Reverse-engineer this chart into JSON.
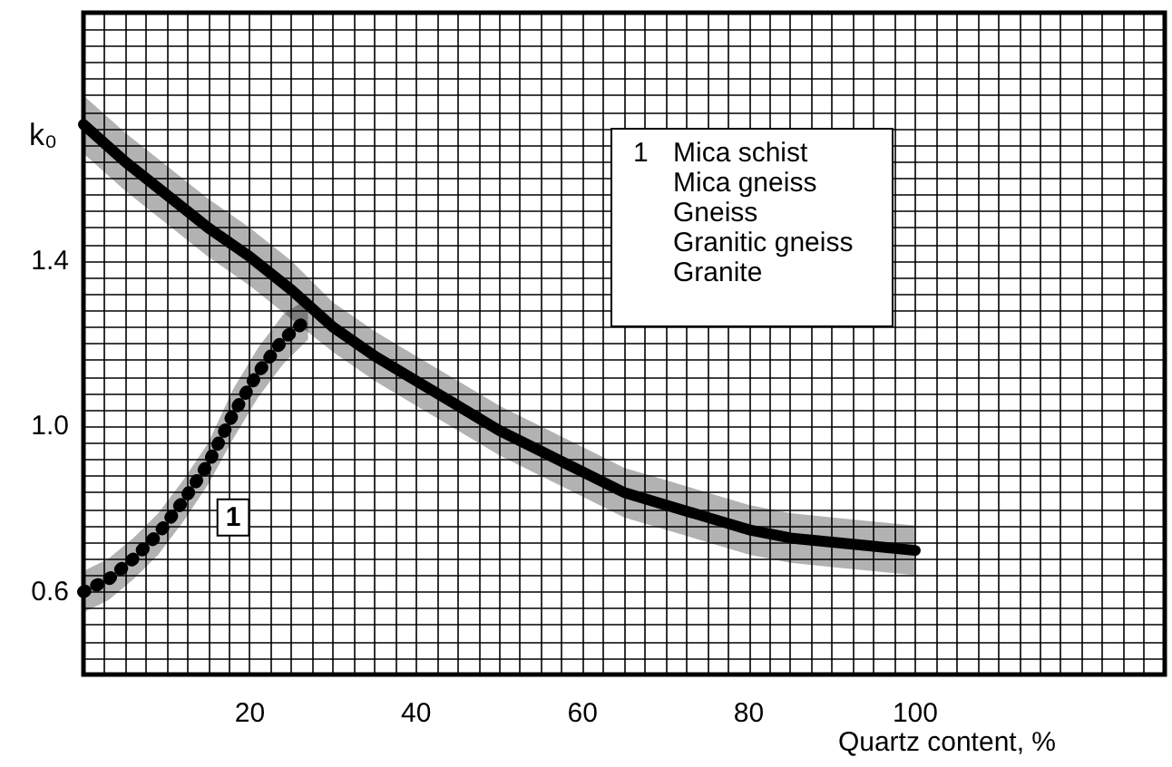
{
  "chart_data": {
    "type": "line",
    "xlabel": "Quartz content, %",
    "ylabel": "k₀",
    "xlim": [
      0,
      130
    ],
    "ylim": [
      0.4,
      2.0
    ],
    "xticks": [
      {
        "value": 0,
        "label": null
      },
      {
        "value": 2.5,
        "label": null
      },
      {
        "value": 5,
        "label": null
      },
      {
        "value": 7.5,
        "label": null
      },
      {
        "value": 10,
        "label": null
      },
      {
        "value": 12.5,
        "label": null
      },
      {
        "value": 15,
        "label": null
      },
      {
        "value": 17.5,
        "label": null
      },
      20,
      {
        "value": 22.5,
        "label": null
      },
      {
        "value": 25,
        "label": null
      },
      {
        "value": 27.5,
        "label": null
      },
      {
        "value": 30,
        "label": null
      },
      {
        "value": 32.5,
        "label": null
      },
      {
        "value": 35,
        "label": null
      },
      {
        "value": 37.5,
        "label": null
      },
      40,
      {
        "value": 42.5,
        "label": null
      },
      {
        "value": 45,
        "label": null
      },
      {
        "value": 47.5,
        "label": null
      },
      {
        "value": 50,
        "label": null
      },
      {
        "value": 52.5,
        "label": null
      },
      {
        "value": 55,
        "label": null
      },
      {
        "value": 57.5,
        "label": null
      },
      60,
      {
        "value": 62.5,
        "label": null
      },
      {
        "value": 65,
        "label": null
      },
      {
        "value": 67.5,
        "label": null
      },
      {
        "value": 70,
        "label": null
      },
      {
        "value": 72.5,
        "label": null
      },
      {
        "value": 75,
        "label": null
      },
      {
        "value": 77.5,
        "label": null
      },
      80,
      {
        "value": 82.5,
        "label": null
      },
      {
        "value": 85,
        "label": null
      },
      {
        "value": 87.5,
        "label": null
      },
      {
        "value": 90,
        "label": null
      },
      {
        "value": 92.5,
        "label": null
      },
      {
        "value": 95,
        "label": null
      },
      {
        "value": 97.5,
        "label": null
      },
      100,
      {
        "value": 102.5,
        "label": null
      },
      {
        "value": 105,
        "label": null
      },
      {
        "value": 107.5,
        "label": null
      },
      {
        "value": 110,
        "label": null
      },
      {
        "value": 112.5,
        "label": null
      },
      {
        "value": 115,
        "label": null
      },
      {
        "value": 117.5,
        "label": null
      },
      {
        "value": 120,
        "label": null
      },
      {
        "value": 122.5,
        "label": null
      },
      {
        "value": 125,
        "label": null
      },
      {
        "value": 127.5,
        "label": null
      },
      {
        "value": 130,
        "label": null
      }
    ],
    "yticks": [
      {
        "value": 0.4,
        "label": null
      },
      {
        "value": 0.44,
        "label": null
      },
      {
        "value": 0.48,
        "label": null
      },
      {
        "value": 0.52,
        "label": null
      },
      {
        "value": 0.56,
        "label": null
      },
      0.6,
      {
        "value": 0.64,
        "label": null
      },
      {
        "value": 0.68,
        "label": null
      },
      {
        "value": 0.72,
        "label": null
      },
      {
        "value": 0.76,
        "label": null
      },
      {
        "value": 0.8,
        "label": null
      },
      {
        "value": 0.84,
        "label": null
      },
      {
        "value": 0.88,
        "label": null
      },
      {
        "value": 0.92,
        "label": null
      },
      {
        "value": 0.96,
        "label": null
      },
      {
        "value": 1.0,
        "label": "1.0"
      },
      {
        "value": 1.04,
        "label": null
      },
      {
        "value": 1.08,
        "label": null
      },
      {
        "value": 1.12,
        "label": null
      },
      {
        "value": 1.16,
        "label": null
      },
      {
        "value": 1.2,
        "label": null
      },
      {
        "value": 1.24,
        "label": null
      },
      {
        "value": 1.28,
        "label": null
      },
      {
        "value": 1.32,
        "label": null
      },
      {
        "value": 1.36,
        "label": null
      },
      1.4,
      {
        "value": 1.44,
        "label": null
      },
      {
        "value": 1.48,
        "label": null
      },
      {
        "value": 1.52,
        "label": null
      },
      {
        "value": 1.56,
        "label": null
      },
      {
        "value": 1.6,
        "label": null
      },
      {
        "value": 1.64,
        "label": null
      },
      {
        "value": 1.68,
        "label": null
      },
      {
        "value": 1.72,
        "label": null
      },
      {
        "value": 1.76,
        "label": null
      },
      {
        "value": 1.8,
        "label": null
      },
      {
        "value": 1.84,
        "label": null
      },
      {
        "value": 1.88,
        "label": null
      },
      {
        "value": 1.92,
        "label": null
      },
      {
        "value": 1.96,
        "label": null
      },
      {
        "value": 2.0,
        "label": null
      }
    ],
    "grid": true,
    "series": [
      {
        "color": "#000000",
        "line_style": "solid",
        "x": [
          0,
          5,
          10,
          15,
          20,
          25,
          30,
          35,
          40,
          45,
          50,
          55,
          60,
          65,
          70,
          75,
          80,
          85,
          90,
          95,
          100
        ],
        "values": [
          1.73,
          1.64,
          1.56,
          1.48,
          1.41,
          1.33,
          1.24,
          1.17,
          1.11,
          1.05,
          0.99,
          0.94,
          0.89,
          0.84,
          0.81,
          0.78,
          0.75,
          0.73,
          0.72,
          0.71,
          0.7
        ],
        "lower": [
          1.66,
          1.57,
          1.49,
          1.41,
          1.34,
          1.26,
          1.18,
          1.11,
          1.05,
          0.99,
          0.93,
          0.88,
          0.83,
          0.78,
          0.75,
          0.72,
          0.69,
          0.67,
          0.66,
          0.65,
          0.64
        ],
        "upper": [
          1.8,
          1.71,
          1.63,
          1.55,
          1.48,
          1.4,
          1.3,
          1.23,
          1.17,
          1.11,
          1.05,
          1.0,
          0.95,
          0.9,
          0.87,
          0.84,
          0.81,
          0.79,
          0.78,
          0.77,
          0.76
        ]
      },
      {
        "color": "#000000",
        "line_style": "dotted",
        "x": [
          0,
          3,
          6,
          9,
          12,
          15,
          18,
          21,
          24,
          27
        ],
        "values": [
          0.6,
          0.63,
          0.68,
          0.74,
          0.82,
          0.91,
          1.03,
          1.13,
          1.21,
          1.26
        ],
        "lower": [
          0.55,
          0.58,
          0.63,
          0.69,
          0.77,
          0.86,
          0.97,
          1.07,
          1.15,
          1.21
        ],
        "upper": [
          0.65,
          0.68,
          0.73,
          0.79,
          0.87,
          0.96,
          1.09,
          1.19,
          1.27,
          1.31
        ]
      }
    ],
    "annotations": [
      {
        "text": "1",
        "x": 18,
        "y": 0.78
      },
      "1",
      "Mica schist",
      "Mica gneiss",
      "Gneiss",
      "Granitic gneiss",
      "Granite"
    ]
  }
}
